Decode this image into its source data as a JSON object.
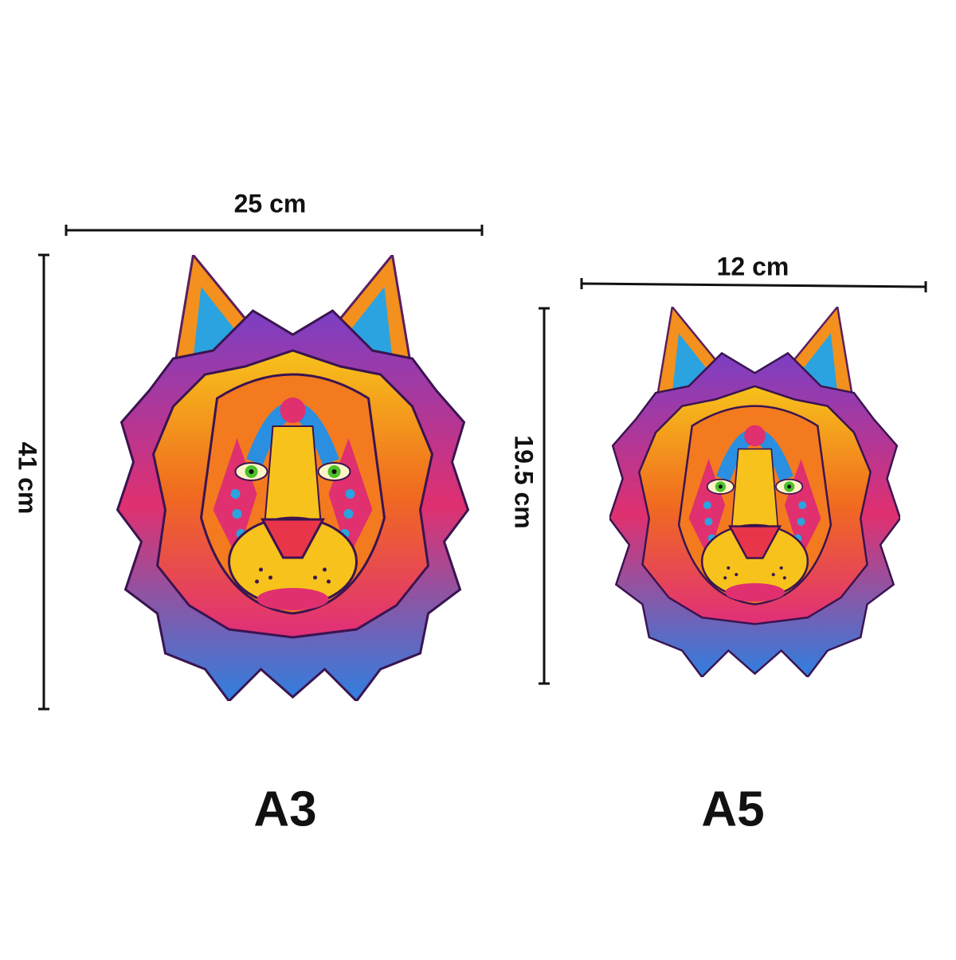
{
  "items": [
    {
      "label": "A3",
      "width": "25 cm",
      "height": "41 cm"
    },
    {
      "label": "A5",
      "width": "12 cm",
      "height": "19.5 cm"
    }
  ]
}
